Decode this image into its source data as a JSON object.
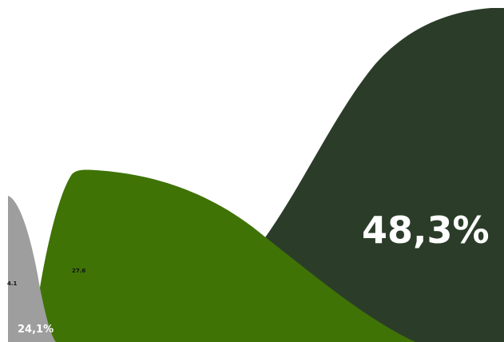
{
  "chart_data": {
    "type": "area",
    "title": "",
    "xlabel": "",
    "ylabel": "",
    "grid": false,
    "legend": "none",
    "series": [
      {
        "key": "gray",
        "color": "#9e9e9e",
        "value_label": "4.1",
        "percent_label": "24,1%"
      },
      {
        "key": "green",
        "color": "#3f7305",
        "value_label": "27.6",
        "percent_label": ""
      },
      {
        "key": "dark",
        "color": "#2b3d29",
        "value_label": "",
        "percent_label": "48,3%"
      }
    ]
  }
}
